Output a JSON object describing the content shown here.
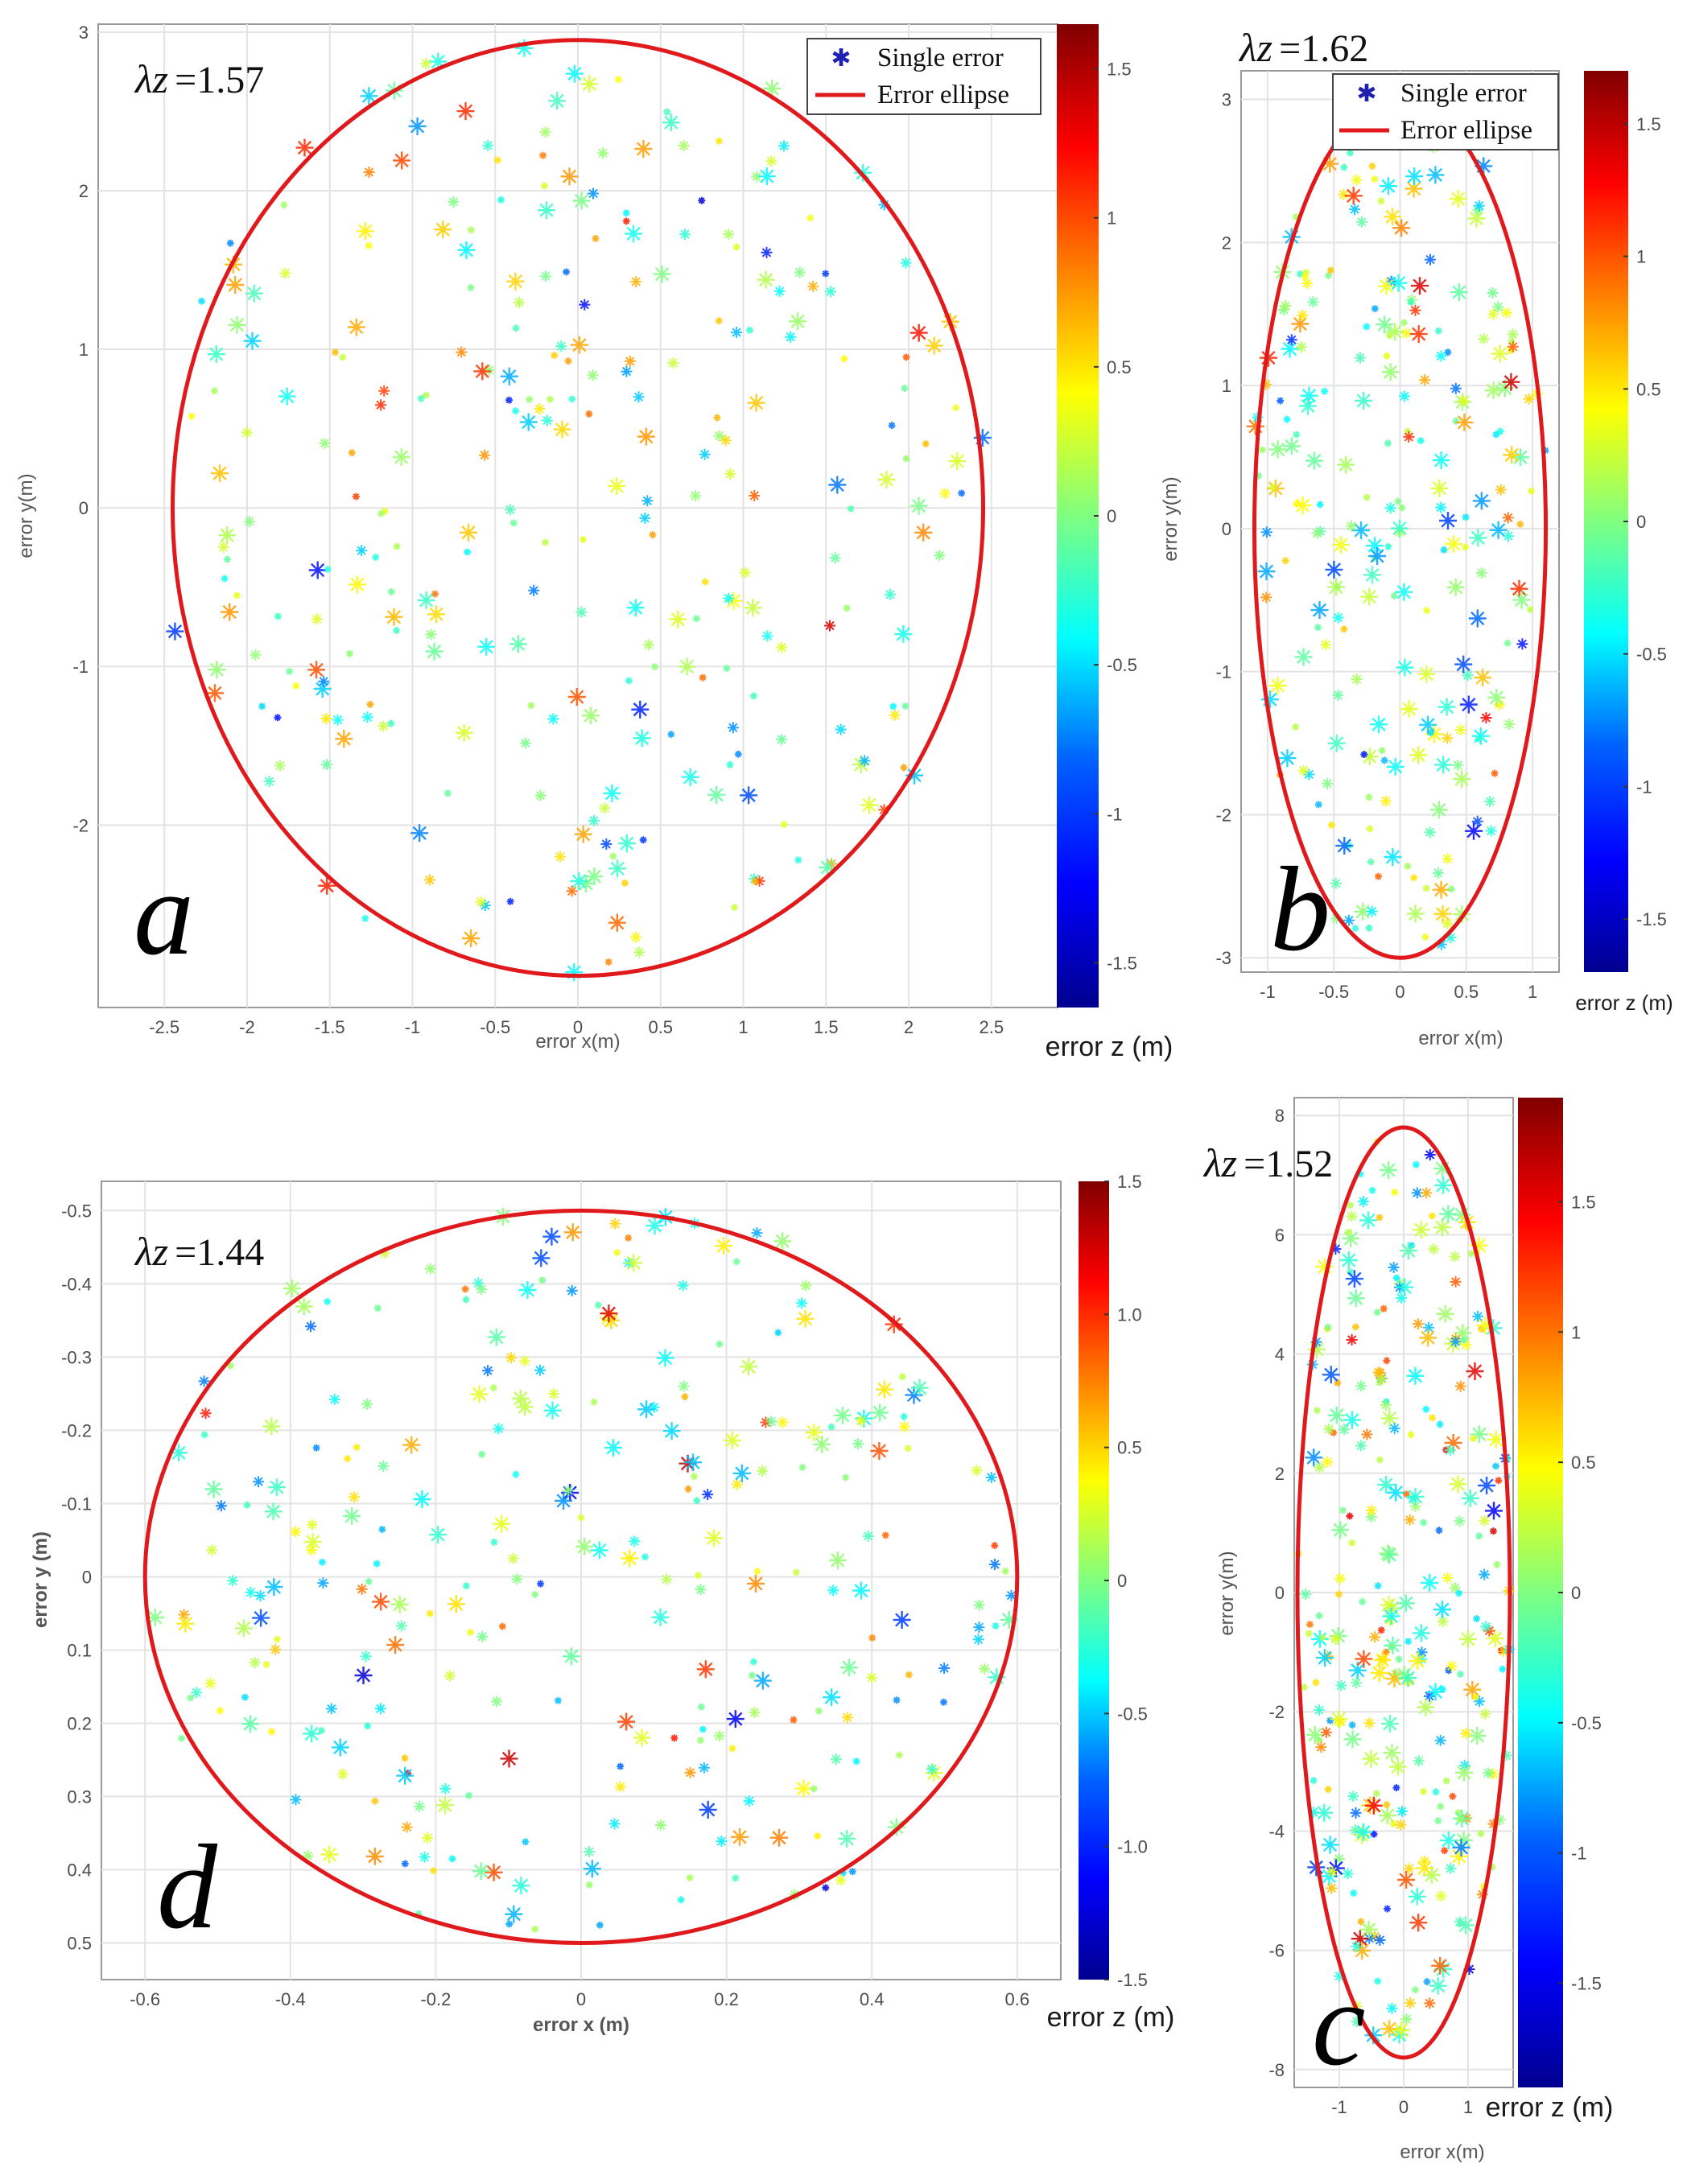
{
  "legend": {
    "single_error_label": "Single error",
    "ellipse_label": "Error ellipse",
    "ellipse_color": "#e0191c",
    "marker_color": "#1f1fb0"
  },
  "colormap": [
    "#00008f",
    "#0000ff",
    "#0080ff",
    "#00ffff",
    "#80ff80",
    "#ffff00",
    "#ff8000",
    "#ff0000",
    "#800000"
  ],
  "chart_data": [
    {
      "id": "a",
      "type": "scatter",
      "panel_letter": "a",
      "lambda_label": "λz",
      "lambda_value": "=1.57",
      "xlabel": "error x(m)",
      "ylabel": "error y(m)",
      "colorbar_label": "error z (m)",
      "xlim": [
        -2.9,
        2.9
      ],
      "ylim": [
        3.05,
        -3.15
      ],
      "xticks": [
        "-2.5",
        "-2",
        "-1.5",
        "-1",
        "-0.5",
        "0",
        "0.5",
        "1",
        "1.5",
        "2",
        "2.5"
      ],
      "yticks": [
        "-2",
        "-1",
        "0",
        "1",
        "2",
        "3"
      ],
      "ellipse": {
        "cx": 0,
        "cy": 0,
        "rx": 2.45,
        "ry": 2.95
      },
      "zlim": [
        -1.65,
        1.65
      ],
      "colorbar_ticks": [
        "1.5",
        "1",
        "0.5",
        "0",
        "-0.5",
        "-1",
        "-1.5"
      ],
      "legend_shown": true,
      "points": {
        "count": 300,
        "seed": 11
      }
    },
    {
      "id": "b",
      "type": "scatter",
      "panel_letter": "b",
      "lambda_label": "λz",
      "lambda_value": "=1.62",
      "xlabel": "error x(m)",
      "ylabel": "error y(m)",
      "colorbar_label": "error z (m)",
      "xlim": [
        -1.2,
        1.2
      ],
      "ylim": [
        3.2,
        -3.1
      ],
      "xticks": [
        "-1",
        "-0.5",
        "0",
        "0.5",
        "1"
      ],
      "yticks": [
        "-3",
        "-2",
        "-1",
        "0",
        "1",
        "2",
        "3"
      ],
      "ellipse": {
        "cx": 0,
        "cy": 0,
        "rx": 1.1,
        "ry": 3.0
      },
      "zlim": [
        -1.7,
        1.7
      ],
      "colorbar_ticks": [
        "1.5",
        "1",
        "0.5",
        "0",
        "-0.5",
        "-1",
        "-1.5"
      ],
      "legend_shown": true,
      "points": {
        "count": 260,
        "seed": 23
      }
    },
    {
      "id": "d",
      "type": "scatter",
      "panel_letter": "d",
      "lambda_label": "λz",
      "lambda_value": "=1.44",
      "xlabel": "error x (m)",
      "ylabel": "error y (m)",
      "colorbar_label": "error z (m)",
      "xlim": [
        -0.66,
        0.66
      ],
      "ylim": [
        -0.54,
        0.55
      ],
      "xticks": [
        "-0.6",
        "-0.4",
        "-0.2",
        "0",
        "0.2",
        "0.4",
        "0.6"
      ],
      "yticks": [
        "0.5",
        "0.4",
        "0.3",
        "0.2",
        "0.1",
        "0",
        "-0.1",
        "-0.2",
        "-0.3",
        "-0.4",
        "-0.5"
      ],
      "ellipse": {
        "cx": 0,
        "cy": 0,
        "rx": 0.6,
        "ry": 0.5
      },
      "zlim": [
        -1.5,
        1.5
      ],
      "colorbar_ticks": [
        "1.5",
        "1.0",
        "0.5",
        "0",
        "-0.5",
        "-1.0",
        "-1.5"
      ],
      "legend_shown": false,
      "points": {
        "count": 300,
        "seed": 37
      }
    },
    {
      "id": "c",
      "type": "scatter",
      "panel_letter": "c",
      "lambda_label": "λz",
      "lambda_value": "=1.52",
      "xlabel": "error x(m)",
      "ylabel": "error y(m)",
      "colorbar_label": "error z (m)",
      "xlim": [
        -1.7,
        1.7
      ],
      "ylim": [
        8.3,
        -8.3
      ],
      "xticks": [
        "-1",
        "0",
        "1"
      ],
      "yticks": [
        "-8",
        "-6",
        "-4",
        "-2",
        "0",
        "2",
        "4",
        "6",
        "8"
      ],
      "ellipse": {
        "cx": 0,
        "cy": 0,
        "rx": 1.65,
        "ry": 7.8
      },
      "zlim": [
        -1.9,
        1.9
      ],
      "colorbar_ticks": [
        "1.5",
        "1",
        "0.5",
        "0",
        "-0.5",
        "-1",
        "-1.5"
      ],
      "legend_shown": false,
      "points": {
        "count": 320,
        "seed": 51
      }
    }
  ]
}
